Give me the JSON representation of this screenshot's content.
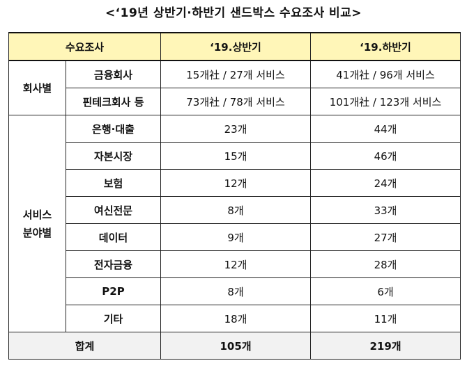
{
  "title": "<‘19년 상반기·하반기 샌드박스 수요조사 비교>",
  "header": {
    "col1": "수요조사",
    "col2": "‘19.상반기",
    "col3": "‘19.하반기"
  },
  "groups": {
    "company": "회사별",
    "service_line1": "서비스",
    "service_line2": "분야별"
  },
  "company_rows": [
    {
      "label": "금융회사",
      "h1": "15개社 / 27개 서비스",
      "h2": "41개社 / 96개 서비스"
    },
    {
      "label": "핀테크회사 등",
      "h1": "73개社 / 78개 서비스",
      "h2": "101개社 / 123개 서비스"
    }
  ],
  "service_rows": [
    {
      "label": "은행·대출",
      "h1": "23개",
      "h2": "44개"
    },
    {
      "label": "자본시장",
      "h1": "15개",
      "h2": "46개"
    },
    {
      "label": "보험",
      "h1": "12개",
      "h2": "24개"
    },
    {
      "label": "여신전문",
      "h1": "8개",
      "h2": "33개"
    },
    {
      "label": "데이터",
      "h1": "9개",
      "h2": "27개"
    },
    {
      "label": "전자금융",
      "h1": "12개",
      "h2": "28개"
    },
    {
      "label": "P2P",
      "h1": "8개",
      "h2": "6개"
    },
    {
      "label": "기타",
      "h1": "18개",
      "h2": "11개"
    }
  ],
  "total": {
    "label": "합계",
    "h1": "105개",
    "h2": "219개"
  }
}
